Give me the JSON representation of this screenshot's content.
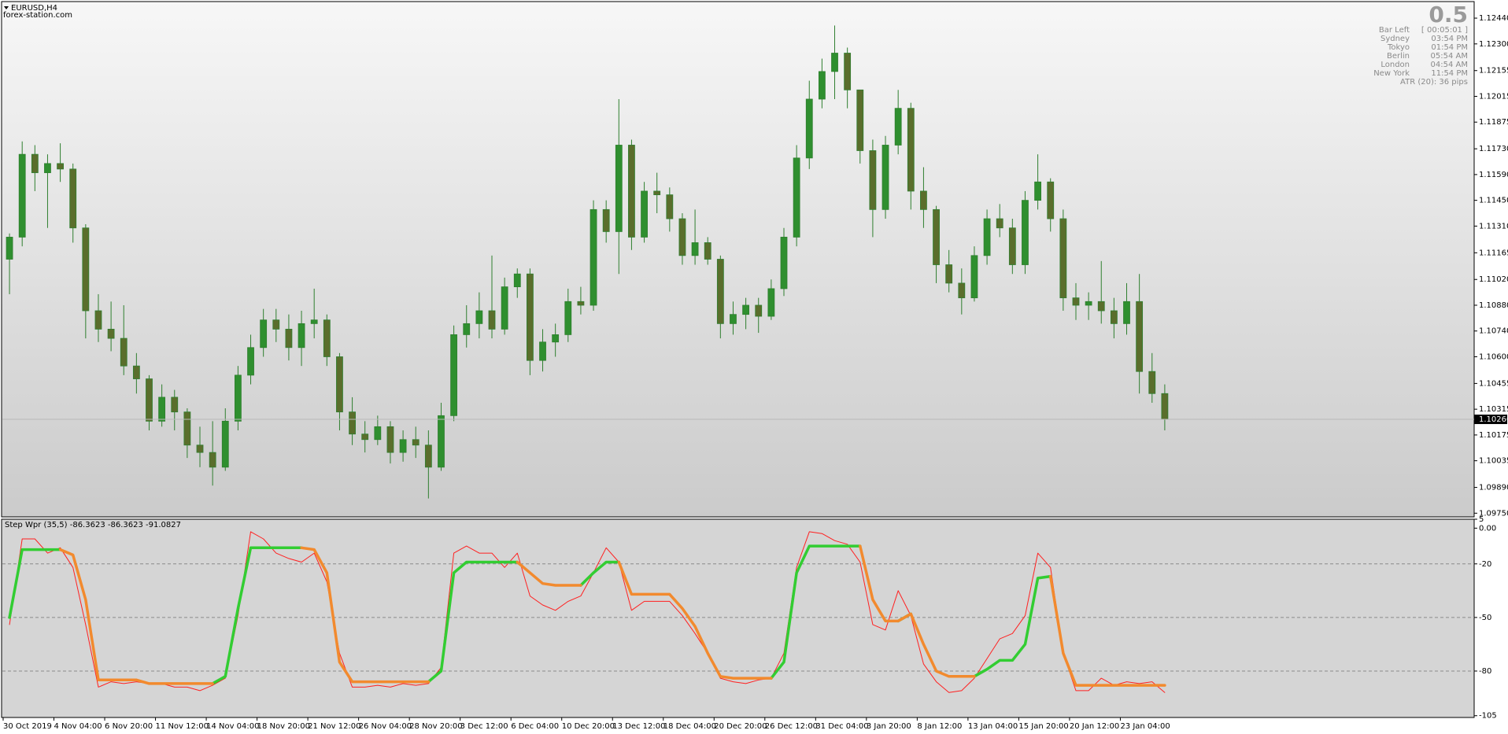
{
  "header": {
    "symbol": "EURUSD,H4",
    "watermark": "forex-station.com"
  },
  "info_panel": {
    "big_value": "0.5",
    "rows": [
      [
        "Bar Left",
        "[ 00:05:01 ]"
      ],
      [
        "Sydney",
        "03:54 PM"
      ],
      [
        "Tokyo",
        "01:54 PM"
      ],
      [
        "Berlin",
        "05:54 AM"
      ],
      [
        "London",
        "04:54 AM"
      ],
      [
        "New York",
        "11:54 PM"
      ]
    ],
    "atr": "ATR (20): 36 pips"
  },
  "chart_data": [
    {
      "type": "candlestick",
      "up_color": "#2f8f2f",
      "down_color": "#5a6e2c",
      "wick_color": "#2f7f2f",
      "categories": [
        "30 Oct 2019",
        null,
        null,
        null,
        "4 Nov 04:00",
        null,
        null,
        null,
        "6 Nov 20:00",
        null,
        null,
        null,
        "11 Nov 12:00",
        null,
        null,
        null,
        "14 Nov 04:00",
        null,
        null,
        null,
        "18 Nov 20:00",
        null,
        null,
        null,
        "21 Nov 12:00",
        null,
        null,
        null,
        "26 Nov 04:00",
        null,
        null,
        null,
        "28 Nov 20:00",
        null,
        null,
        null,
        "3 Dec 12:00",
        null,
        null,
        null,
        "6 Dec 04:00",
        null,
        null,
        null,
        "10 Dec 20:00",
        null,
        null,
        null,
        "13 Dec 12:00",
        null,
        null,
        null,
        "18 Dec 04:00",
        null,
        null,
        null,
        "20 Dec 20:00",
        null,
        null,
        null,
        "26 Dec 12:00",
        null,
        null,
        null,
        "31 Dec 04:00",
        null,
        null,
        null,
        "3 Jan 20:00",
        null,
        null,
        null,
        "8 Jan 12:00",
        null,
        null,
        null,
        "13 Jan 04:00",
        null,
        null,
        null,
        "15 Jan 20:00",
        null,
        null,
        null,
        "20 Jan 12:00",
        null,
        null,
        null,
        "23 Jan 04:00",
        null,
        null,
        null
      ],
      "open": [
        1.1113,
        1.1125,
        1.117,
        1.116,
        1.1165,
        1.1162,
        1.113,
        1.1085,
        1.1075,
        1.107,
        1.1055,
        1.1048,
        1.1025,
        1.1038,
        1.103,
        1.1012,
        1.1008,
        1.1,
        1.1025,
        1.105,
        1.1065,
        1.108,
        1.1075,
        1.1065,
        1.1078,
        1.108,
        1.106,
        1.103,
        1.1018,
        1.1015,
        1.1022,
        1.1008,
        1.1015,
        1.1012,
        1.1,
        1.1028,
        1.1072,
        1.1078,
        1.1085,
        1.1075,
        1.1098,
        1.1105,
        1.1058,
        1.1068,
        1.1072,
        1.109,
        1.1088,
        1.114,
        1.1128,
        1.1175,
        1.1125,
        1.115,
        1.1148,
        1.1135,
        1.1115,
        1.1122,
        1.1113,
        1.1078,
        1.1083,
        1.1088,
        1.1082,
        1.1097,
        1.1125,
        1.1168,
        1.12,
        1.1215,
        1.1225,
        1.1205,
        1.1172,
        1.114,
        1.1175,
        1.1195,
        1.115,
        1.114,
        1.111,
        1.11,
        1.1092,
        1.1115,
        1.1135,
        1.113,
        1.111,
        1.1145,
        1.1155,
        1.1135,
        1.1092,
        1.1088,
        1.109,
        1.1085,
        1.1078,
        1.109,
        1.1052,
        1.104
      ],
      "high": [
        1.1127,
        1.1177,
        1.1175,
        1.117,
        1.1176,
        1.1165,
        1.1132,
        1.1094,
        1.109,
        1.1088,
        1.1062,
        1.105,
        1.1045,
        1.1042,
        1.1032,
        1.1022,
        1.1025,
        1.1032,
        1.1055,
        1.1072,
        1.1086,
        1.1086,
        1.1083,
        1.1085,
        1.1097,
        1.1083,
        1.1062,
        1.1038,
        1.1025,
        1.1028,
        1.1025,
        1.102,
        1.1022,
        1.102,
        1.1035,
        1.1077,
        1.1088,
        1.1095,
        1.1115,
        1.1103,
        1.1108,
        1.1108,
        1.1075,
        1.1078,
        1.1097,
        1.1098,
        1.1145,
        1.1145,
        1.12,
        1.1178,
        1.1155,
        1.116,
        1.1152,
        1.1138,
        1.114,
        1.1125,
        1.1115,
        1.109,
        1.1092,
        1.1092,
        1.1102,
        1.113,
        1.1175,
        1.121,
        1.1222,
        1.124,
        1.1228,
        1.1205,
        1.1178,
        1.118,
        1.1205,
        1.1198,
        1.1163,
        1.1142,
        1.1118,
        1.1108,
        1.112,
        1.114,
        1.1143,
        1.1135,
        1.115,
        1.117,
        1.1157,
        1.114,
        1.11,
        1.1095,
        1.1112,
        1.1092,
        1.11,
        1.1105,
        1.1062,
        1.1045
      ],
      "low": [
        1.1094,
        1.112,
        1.115,
        1.113,
        1.1155,
        1.1122,
        1.107,
        1.1068,
        1.1063,
        1.105,
        1.104,
        1.102,
        1.1022,
        1.102,
        1.1005,
        1.1,
        1.099,
        1.0998,
        1.102,
        1.1045,
        1.106,
        1.1068,
        1.1058,
        1.1055,
        1.107,
        1.1055,
        1.102,
        1.1012,
        1.1008,
        1.1012,
        1.1002,
        1.1003,
        1.1005,
        1.0983,
        1.0998,
        1.1025,
        1.1065,
        1.107,
        1.107,
        1.1072,
        1.1092,
        1.105,
        1.1052,
        1.106,
        1.1068,
        1.1083,
        1.1085,
        1.1122,
        1.1105,
        1.1118,
        1.1122,
        1.1138,
        1.1128,
        1.111,
        1.111,
        1.111,
        1.107,
        1.1072,
        1.1075,
        1.1073,
        1.108,
        1.1093,
        1.112,
        1.1162,
        1.1195,
        1.12,
        1.1195,
        1.1165,
        1.1125,
        1.1135,
        1.117,
        1.114,
        1.113,
        1.11,
        1.1095,
        1.1083,
        1.109,
        1.111,
        1.1125,
        1.1105,
        1.1105,
        1.114,
        1.1128,
        1.1085,
        1.108,
        1.108,
        1.1078,
        1.107,
        1.1072,
        1.104,
        1.1035,
        1.102
      ],
      "close": [
        1.1125,
        1.117,
        1.116,
        1.1165,
        1.1162,
        1.113,
        1.1085,
        1.1075,
        1.107,
        1.1055,
        1.1048,
        1.1025,
        1.1038,
        1.103,
        1.1012,
        1.1008,
        1.1,
        1.1025,
        1.105,
        1.1065,
        1.108,
        1.1075,
        1.1065,
        1.1078,
        1.108,
        1.106,
        1.103,
        1.1018,
        1.1015,
        1.1022,
        1.1008,
        1.1015,
        1.1012,
        1.1,
        1.1028,
        1.1072,
        1.1078,
        1.1085,
        1.1075,
        1.1098,
        1.1105,
        1.1058,
        1.1068,
        1.1072,
        1.109,
        1.1088,
        1.114,
        1.1128,
        1.1175,
        1.1125,
        1.115,
        1.1148,
        1.1135,
        1.1115,
        1.1122,
        1.1113,
        1.1078,
        1.1083,
        1.1088,
        1.1082,
        1.1097,
        1.1125,
        1.1168,
        1.12,
        1.1215,
        1.1225,
        1.1205,
        1.1172,
        1.114,
        1.1175,
        1.1195,
        1.115,
        1.114,
        1.111,
        1.11,
        1.1092,
        1.1115,
        1.1135,
        1.113,
        1.111,
        1.1145,
        1.1155,
        1.1135,
        1.1092,
        1.1088,
        1.109,
        1.1085,
        1.1078,
        1.109,
        1.1052,
        1.104,
        1.1026
      ],
      "last_price": {
        "value": 1.1026,
        "label": "1.10260"
      },
      "ylim": [
        1.0973,
        1.1253
      ],
      "yticks": [
        {
          "value": 1.1244,
          "label": "1.12440"
        },
        {
          "value": 1.123,
          "label": "1.12300"
        },
        {
          "value": 1.12155,
          "label": "1.12155"
        },
        {
          "value": 1.12015,
          "label": "1.12015"
        },
        {
          "value": 1.11875,
          "label": "1.11875"
        },
        {
          "value": 1.1173,
          "label": "1.11730"
        },
        {
          "value": 1.1159,
          "label": "1.11590"
        },
        {
          "value": 1.1145,
          "label": "1.11450"
        },
        {
          "value": 1.1131,
          "label": "1.11310"
        },
        {
          "value": 1.11165,
          "label": "1.11165"
        },
        {
          "value": 1.1102,
          "label": "1.11020"
        },
        {
          "value": 1.1088,
          "label": "1.10880"
        },
        {
          "value": 1.1074,
          "label": "1.10740"
        },
        {
          "value": 1.106,
          "label": "1.10600"
        },
        {
          "value": 1.10455,
          "label": "1.10455"
        },
        {
          "value": 1.10315,
          "label": "1.10315"
        },
        {
          "value": 1.10175,
          "label": "1.10175"
        },
        {
          "value": 1.10035,
          "label": "1.10035"
        },
        {
          "value": 1.0989,
          "label": "1.09890"
        },
        {
          "value": 1.0975,
          "label": "1.09750"
        }
      ]
    },
    {
      "type": "line",
      "title": "Step Wpr (35,5) -86.3623 -86.3623 -91.0827",
      "series": [
        {
          "color": "#ff2020",
          "width": 1,
          "values": [
            -54,
            -6,
            -6,
            -14,
            -11,
            -22,
            -54,
            -89,
            -86,
            -87,
            -86,
            -87,
            -87,
            -89,
            -89,
            -91,
            -88,
            -84,
            -49,
            -2,
            -6,
            -14,
            -17,
            -19,
            -14,
            -30,
            -70,
            -89,
            -89,
            -88,
            -89,
            -87,
            -88,
            -87,
            -78,
            -14,
            -10,
            -14,
            -14,
            -22,
            -14,
            -38,
            -43,
            -46,
            -41,
            -38,
            -25,
            -11,
            -19,
            -46,
            -41,
            -41,
            -41,
            -49,
            -59,
            -70,
            -84,
            -86,
            -87,
            -85,
            -84,
            -70,
            -22,
            -2,
            -3,
            -7,
            -9,
            -19,
            -54,
            -57,
            -35,
            -49,
            -76,
            -86,
            -92,
            -91,
            -84,
            -73,
            -62,
            -59,
            -49,
            -14,
            -22,
            -70,
            -91,
            -91,
            -84,
            -88,
            -86,
            -87,
            -86,
            -92
          ]
        },
        {
          "color": "#32cd32",
          "width": 3.5,
          "values": [
            -50,
            -12,
            -12,
            -12,
            -12,
            null,
            null,
            null,
            null,
            null,
            null,
            null,
            null,
            null,
            null,
            null,
            -87,
            -83,
            -45,
            -11,
            -11,
            -11,
            -11,
            -11,
            null,
            null,
            null,
            null,
            null,
            null,
            null,
            null,
            null,
            -86,
            -80,
            -25,
            -19,
            -19,
            -19,
            -19,
            -19,
            null,
            null,
            null,
            null,
            -32,
            -25,
            -19,
            -19,
            null,
            null,
            null,
            null,
            null,
            null,
            null,
            null,
            null,
            null,
            null,
            -84,
            -75,
            -25,
            -10,
            -10,
            -10,
            -10,
            -10,
            null,
            null,
            -52,
            -48,
            null,
            null,
            null,
            null,
            -83,
            -79,
            -74,
            -74,
            -65,
            -28,
            -27,
            null,
            null,
            null,
            null,
            null,
            null,
            null,
            null,
            null
          ]
        },
        {
          "color": "#f28a2e",
          "width": 3.5,
          "values": [
            null,
            null,
            null,
            null,
            -12,
            -15,
            -40,
            -85,
            -85,
            -85,
            -85,
            -87,
            -87,
            -87,
            -87,
            -87,
            -87,
            null,
            null,
            null,
            null,
            null,
            null,
            -11,
            -12,
            -25,
            -75,
            -86,
            -86,
            -86,
            -86,
            -86,
            -86,
            -86,
            null,
            null,
            null,
            null,
            null,
            null,
            -19,
            -25,
            -31,
            -32,
            -32,
            -32,
            null,
            null,
            -19,
            -37,
            -37,
            -37,
            -37,
            -45,
            -55,
            -70,
            -83,
            -84,
            -84,
            -84,
            -84,
            null,
            null,
            null,
            null,
            null,
            null,
            -10,
            -40,
            -52,
            -52,
            -48,
            -65,
            -80,
            -83,
            -83,
            -83,
            null,
            null,
            null,
            null,
            null,
            -27,
            -70,
            -88,
            -88,
            -88,
            -88,
            -88,
            -88,
            -88,
            -88
          ]
        }
      ],
      "levels": [
        -20,
        -50,
        -80
      ],
      "ylim": [
        -106,
        5
      ],
      "yticks": [
        5,
        {
          "value": 0,
          "label": "0.00"
        },
        -20,
        -50,
        -80,
        -105
      ]
    }
  ]
}
